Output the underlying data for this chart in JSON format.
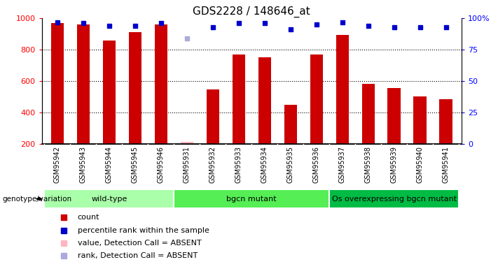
{
  "title": "GDS2228 / 148646_at",
  "samples": [
    "GSM95942",
    "GSM95943",
    "GSM95944",
    "GSM95945",
    "GSM95946",
    "GSM95931",
    "GSM95932",
    "GSM95933",
    "GSM95934",
    "GSM95935",
    "GSM95936",
    "GSM95937",
    "GSM95938",
    "GSM95939",
    "GSM95940",
    "GSM95941"
  ],
  "counts": [
    970,
    960,
    860,
    910,
    960,
    210,
    545,
    770,
    750,
    448,
    770,
    895,
    580,
    555,
    500,
    485
  ],
  "ranks": [
    97,
    96,
    94,
    94,
    96,
    null,
    93,
    96,
    96,
    91,
    95,
    97,
    94,
    93,
    93,
    93
  ],
  "absent_idx": 5,
  "absent_count": 210,
  "absent_rank": 84,
  "ylim_left": [
    200,
    1000
  ],
  "ylim_right": [
    0,
    100
  ],
  "yticks_left": [
    200,
    400,
    600,
    800,
    1000
  ],
  "yticks_right": [
    0,
    25,
    50,
    75,
    100
  ],
  "bar_color": "#CC0000",
  "rank_color": "#0000CC",
  "absent_bar_color": "#FFB6C1",
  "absent_rank_color": "#AAAADD",
  "groups": [
    {
      "label": "wild-type",
      "start": 0,
      "end": 4,
      "color": "#AAFFAA"
    },
    {
      "label": "bgcn mutant",
      "start": 5,
      "end": 10,
      "color": "#55EE55"
    },
    {
      "label": "Os overexpressing bgcn mutant",
      "start": 11,
      "end": 15,
      "color": "#00BB44"
    }
  ],
  "genotype_label": "genotype/variation",
  "legend_items": [
    {
      "color": "#CC0000",
      "label": "count"
    },
    {
      "color": "#0000CC",
      "label": "percentile rank within the sample"
    },
    {
      "color": "#FFB6C1",
      "label": "value, Detection Call = ABSENT"
    },
    {
      "color": "#AAAADD",
      "label": "rank, Detection Call = ABSENT"
    }
  ],
  "tick_bg_color": "#D0D0D0",
  "plot_bg_color": "#FFFFFF",
  "bar_width": 0.5,
  "tick_label_fontsize": 7,
  "title_fontsize": 11,
  "n_samples": 16
}
